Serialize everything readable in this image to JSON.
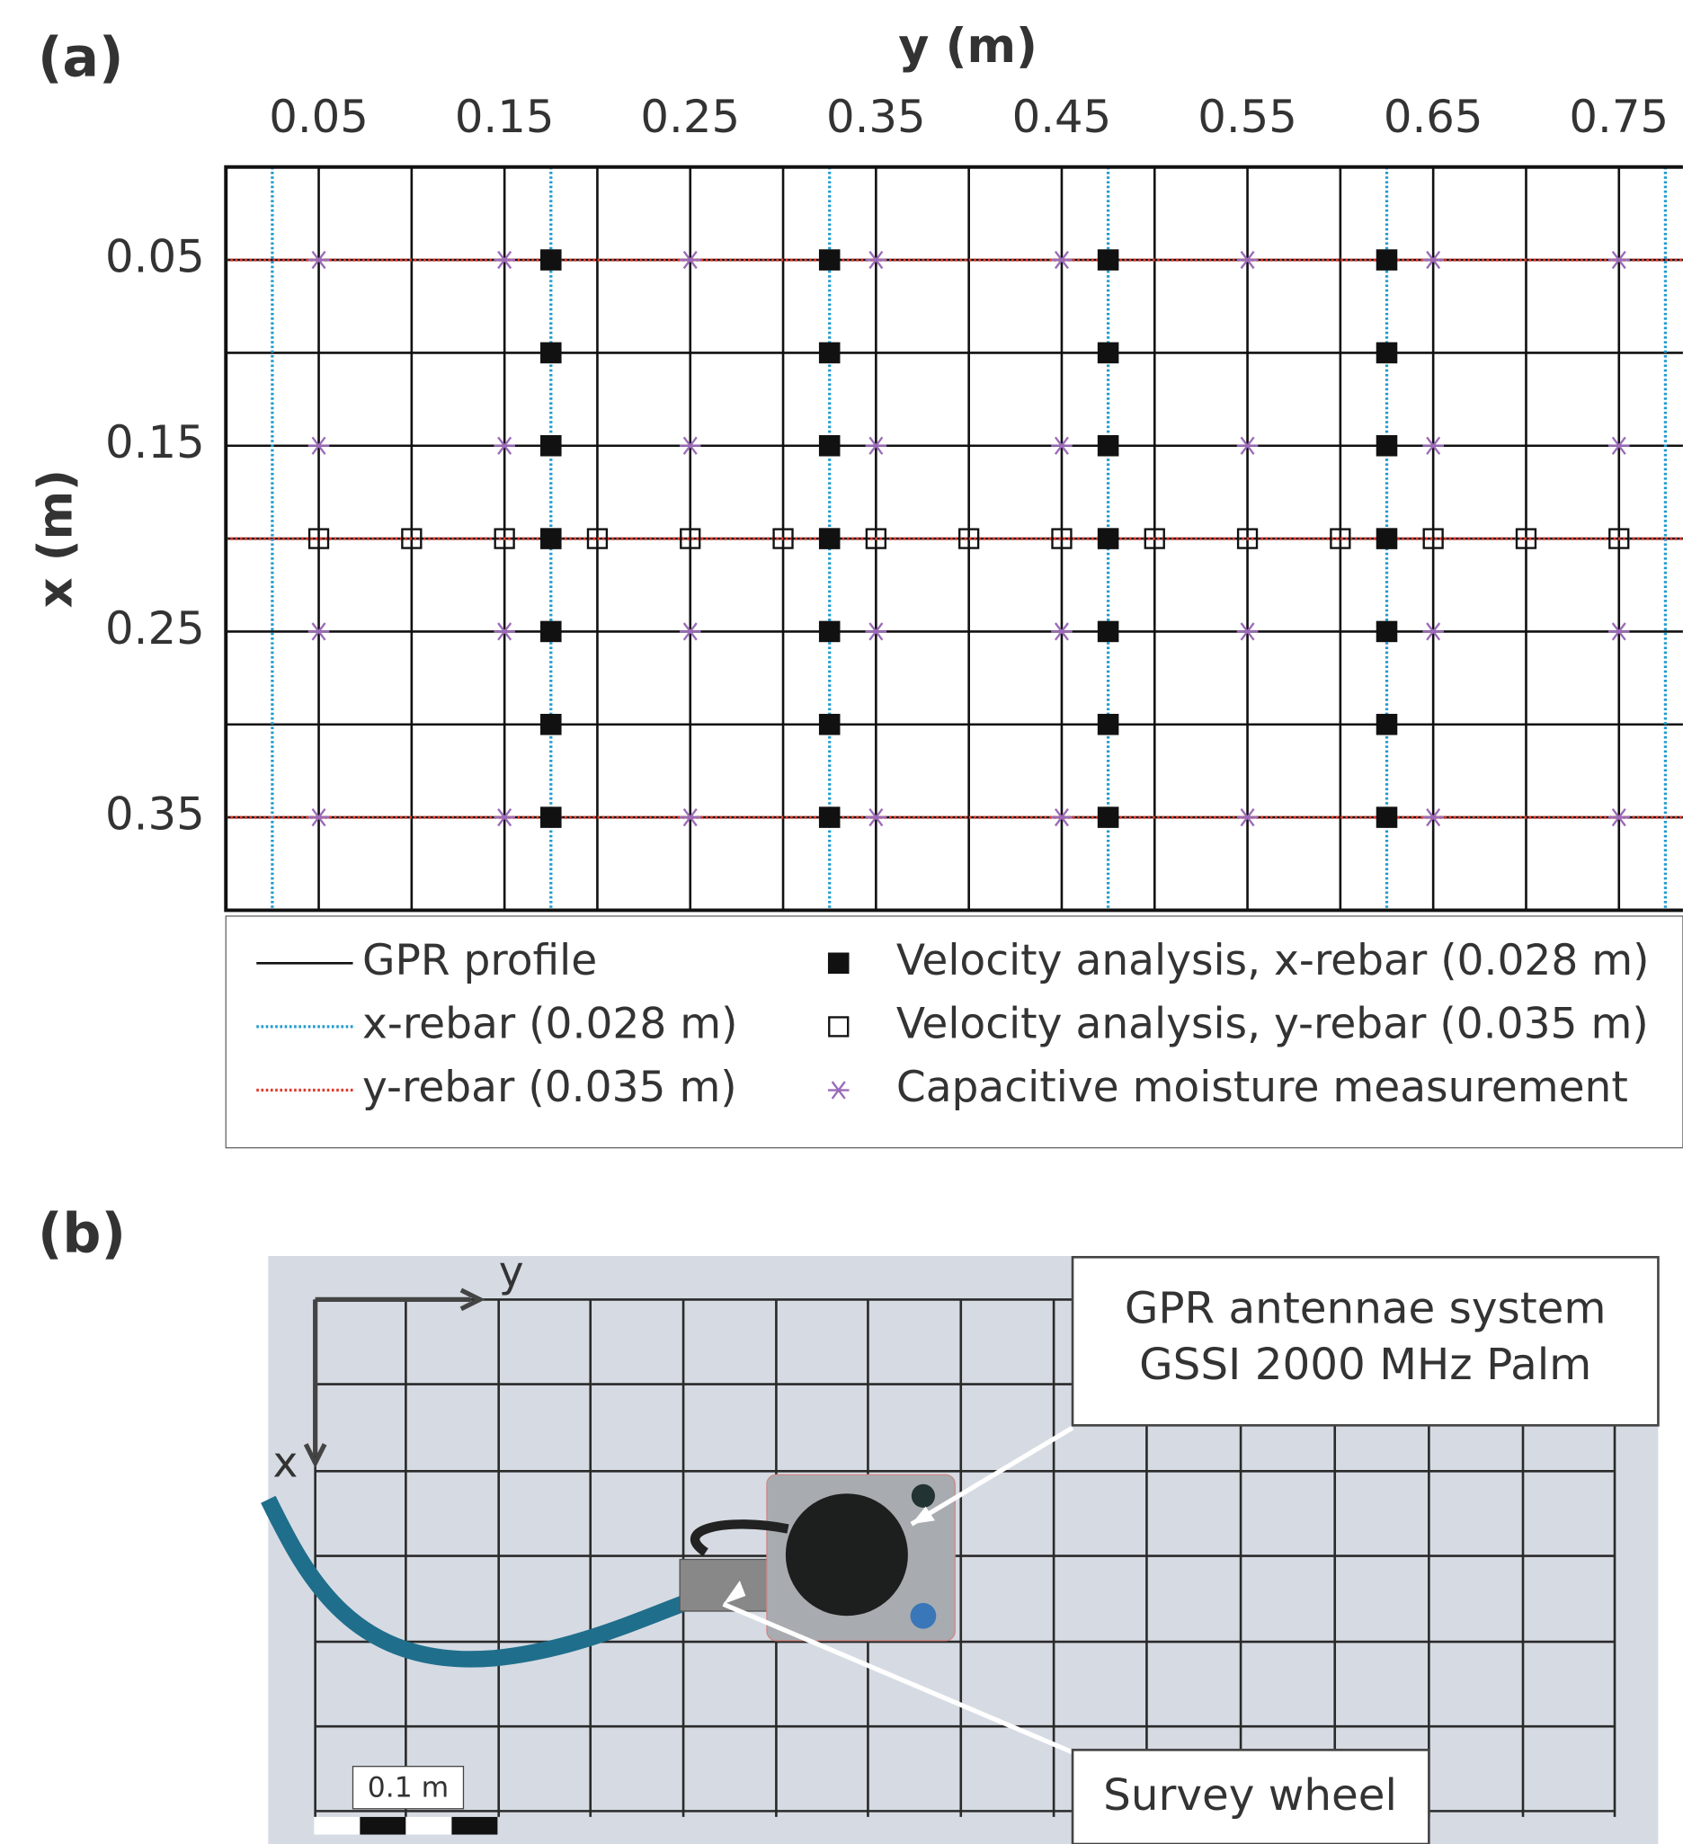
{
  "panel_labels": [
    "(a)",
    "(b)"
  ],
  "chart_data": {
    "type": "scatter",
    "x_label": "y (m)",
    "y_label": "x (m)",
    "xaxis_position": "top",
    "yaxis_inverted": true,
    "xlim": [
      0,
      0.78
    ],
    "ylim": [
      0,
      0.4
    ],
    "xticks": [
      0.05,
      0.15,
      0.25,
      0.35,
      0.45,
      0.55,
      0.65,
      0.75
    ],
    "yticks": [
      0.05,
      0.15,
      0.25,
      0.35
    ],
    "series": [
      {
        "name": "GPR profile",
        "color": "#111111",
        "style": "solid",
        "vlines": [
          0.05,
          0.1,
          0.15,
          0.2,
          0.25,
          0.3,
          0.35,
          0.4,
          0.45,
          0.5,
          0.55,
          0.6,
          0.65,
          0.7,
          0.75
        ],
        "hlines": [
          0.05,
          0.1,
          0.15,
          0.2,
          0.25,
          0.3,
          0.35
        ]
      },
      {
        "name": "x-rebar (0.028 m)",
        "color": "#1e9bd0",
        "style": "dotted",
        "vlines": [
          0.025,
          0.175,
          0.325,
          0.475,
          0.625,
          0.775
        ]
      },
      {
        "name": "y-rebar (0.035 m)",
        "color": "#e0392e",
        "style": "dotted",
        "hlines": [
          0.05,
          0.2,
          0.35
        ]
      },
      {
        "name": "Velocity analysis, x-rebar (0.028 m)",
        "color": "#111111",
        "marker": "filled-square",
        "x": [
          0.175,
          0.325,
          0.475,
          0.625,
          0.175,
          0.325,
          0.475,
          0.625,
          0.175,
          0.325,
          0.475,
          0.625,
          0.175,
          0.325,
          0.475,
          0.625,
          0.175,
          0.325,
          0.475,
          0.625,
          0.175,
          0.325,
          0.475,
          0.625,
          0.175,
          0.325,
          0.475,
          0.625
        ],
        "y": [
          0.05,
          0.05,
          0.05,
          0.05,
          0.1,
          0.1,
          0.1,
          0.1,
          0.15,
          0.15,
          0.15,
          0.15,
          0.2,
          0.2,
          0.2,
          0.2,
          0.25,
          0.25,
          0.25,
          0.25,
          0.3,
          0.3,
          0.3,
          0.3,
          0.35,
          0.35,
          0.35,
          0.35
        ]
      },
      {
        "name": "Velocity analysis, y-rebar (0.035 m)",
        "color": "#111111",
        "marker": "open-square",
        "x": [
          0.05,
          0.1,
          0.15,
          0.2,
          0.25,
          0.3,
          0.35,
          0.4,
          0.45,
          0.5,
          0.55,
          0.6,
          0.65,
          0.7,
          0.75
        ],
        "y": [
          0.2,
          0.2,
          0.2,
          0.2,
          0.2,
          0.2,
          0.2,
          0.2,
          0.2,
          0.2,
          0.2,
          0.2,
          0.2,
          0.2,
          0.2
        ]
      },
      {
        "name": "Capacitive moisture measurement",
        "color": "#9b6bb8",
        "marker": "asterisk",
        "x": [
          0.05,
          0.15,
          0.25,
          0.35,
          0.45,
          0.55,
          0.65,
          0.75,
          0.05,
          0.15,
          0.25,
          0.35,
          0.45,
          0.55,
          0.65,
          0.75,
          0.05,
          0.15,
          0.25,
          0.35,
          0.45,
          0.55,
          0.65,
          0.75,
          0.05,
          0.15,
          0.25,
          0.35,
          0.45,
          0.55,
          0.65,
          0.75
        ],
        "y": [
          0.05,
          0.05,
          0.05,
          0.05,
          0.05,
          0.05,
          0.05,
          0.05,
          0.15,
          0.15,
          0.15,
          0.15,
          0.15,
          0.15,
          0.15,
          0.15,
          0.25,
          0.25,
          0.25,
          0.25,
          0.25,
          0.25,
          0.25,
          0.25,
          0.35,
          0.35,
          0.35,
          0.35,
          0.35,
          0.35,
          0.35,
          0.35
        ]
      }
    ]
  },
  "photo": {
    "axis_labels": [
      "y",
      "x"
    ],
    "callouts": [
      {
        "lines": [
          "GPR antennae system",
          "GSSI 2000 MHz Palm"
        ]
      },
      {
        "lines": [
          "Survey wheel"
        ]
      }
    ],
    "scale_bar": "0.1 m"
  }
}
